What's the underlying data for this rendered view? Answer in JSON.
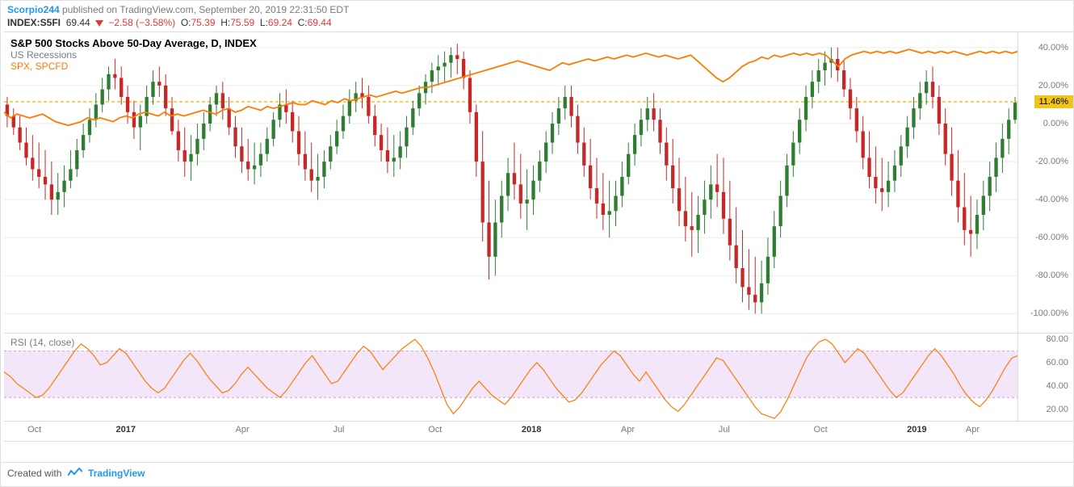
{
  "header": {
    "user": "Scorpio244",
    "pub_text_1": " published on ",
    "site": "TradingView.com",
    "pub_text_2": ", September 20, 2019 22:31:50 EDT"
  },
  "ohlc": {
    "symbol": "INDEX:S5FI",
    "last": "69.44",
    "change": "−2.58",
    "change_pct": "(−3.58%)",
    "O_lbl": "O:",
    "O": "75.39",
    "H_lbl": "H:",
    "H": "75.59",
    "L_lbl": "L:",
    "L": "69.24",
    "C_lbl": "C:",
    "C": "69.44",
    "neg_color": "#e53935"
  },
  "legend": {
    "title": "S&P 500 Stocks Above 50-Day Average, D, INDEX",
    "sub": "US Recessions",
    "spx": "SPX, SPCFD"
  },
  "main_chart": {
    "type": "candlestick+line",
    "y": {
      "min": -110,
      "max": 48,
      "ticks": [
        40,
        20,
        0,
        -20,
        -40,
        -60,
        -80,
        -100
      ]
    },
    "hline": {
      "value": 11.46,
      "label": "11.46%",
      "color": "#f0c419"
    },
    "spx_color": "#ff7a00",
    "up_color": "#2e7d32",
    "down_color": "#c62828",
    "spx": [
      6,
      3,
      5,
      4,
      3,
      4,
      5,
      3,
      1,
      0,
      -1,
      0,
      1,
      3,
      2,
      3,
      2,
      1,
      3,
      4,
      3,
      5,
      6,
      5,
      4,
      6,
      4,
      5,
      4,
      5,
      6,
      7,
      6,
      5,
      7,
      8,
      6,
      7,
      9,
      8,
      7,
      9,
      8,
      9,
      10,
      11,
      10,
      10,
      12,
      11,
      10,
      12,
      11,
      13,
      12,
      13,
      14,
      15,
      14,
      15,
      16,
      17,
      16,
      17,
      18,
      19,
      19,
      20,
      21,
      22,
      23,
      24,
      25,
      26,
      27,
      28,
      29,
      30,
      31,
      32,
      33,
      32,
      31,
      30,
      29,
      28,
      30,
      32,
      31,
      32,
      33,
      34,
      33,
      34,
      35,
      34,
      35,
      36,
      35,
      36,
      37,
      36,
      35,
      36,
      35,
      34,
      35,
      36,
      33,
      30,
      27,
      24,
      22,
      24,
      27,
      30,
      32,
      33,
      35,
      34,
      36,
      35,
      36,
      37,
      36,
      37,
      36,
      37,
      36,
      33,
      30,
      34,
      36,
      37,
      38,
      37,
      38,
      37,
      38,
      37,
      38,
      39,
      38,
      37,
      38,
      37,
      38,
      37,
      38,
      37,
      36,
      37,
      38,
      37,
      38,
      37,
      38,
      37,
      38
    ],
    "candles": [
      {
        "o": 10,
        "h": 14,
        "l": -2,
        "c": 4
      },
      {
        "o": 4,
        "h": 8,
        "l": -6,
        "c": -2
      },
      {
        "o": -2,
        "h": 4,
        "l": -14,
        "c": -10
      },
      {
        "o": -10,
        "h": -2,
        "l": -22,
        "c": -18
      },
      {
        "o": -18,
        "h": -6,
        "l": -30,
        "c": -24
      },
      {
        "o": -24,
        "h": -10,
        "l": -34,
        "c": -28
      },
      {
        "o": -28,
        "h": -14,
        "l": -40,
        "c": -32
      },
      {
        "o": -32,
        "h": -20,
        "l": -48,
        "c": -40
      },
      {
        "o": -40,
        "h": -26,
        "l": -48,
        "c": -36
      },
      {
        "o": -36,
        "h": -22,
        "l": -44,
        "c": -30
      },
      {
        "o": -30,
        "h": -14,
        "l": -34,
        "c": -24
      },
      {
        "o": -24,
        "h": -8,
        "l": -28,
        "c": -14
      },
      {
        "o": -14,
        "h": 0,
        "l": -18,
        "c": -6
      },
      {
        "o": -6,
        "h": 8,
        "l": -10,
        "c": 2
      },
      {
        "o": 2,
        "h": 16,
        "l": -2,
        "c": 10
      },
      {
        "o": 10,
        "h": 24,
        "l": 6,
        "c": 18
      },
      {
        "o": 18,
        "h": 30,
        "l": 12,
        "c": 26
      },
      {
        "o": 26,
        "h": 34,
        "l": 18,
        "c": 24
      },
      {
        "o": 24,
        "h": 30,
        "l": 10,
        "c": 14
      },
      {
        "o": 14,
        "h": 20,
        "l": 0,
        "c": 6
      },
      {
        "o": 6,
        "h": 12,
        "l": -8,
        "c": -2
      },
      {
        "o": -2,
        "h": 10,
        "l": -14,
        "c": 4
      },
      {
        "o": 4,
        "h": 20,
        "l": 0,
        "c": 14
      },
      {
        "o": 14,
        "h": 28,
        "l": 10,
        "c": 22
      },
      {
        "o": 22,
        "h": 30,
        "l": 14,
        "c": 20
      },
      {
        "o": 20,
        "h": 26,
        "l": 4,
        "c": 8
      },
      {
        "o": 8,
        "h": 14,
        "l": -6,
        "c": -4
      },
      {
        "o": -4,
        "h": 2,
        "l": -20,
        "c": -14
      },
      {
        "o": -14,
        "h": -2,
        "l": -28,
        "c": -20
      },
      {
        "o": -20,
        "h": -6,
        "l": -30,
        "c": -16
      },
      {
        "o": -16,
        "h": 0,
        "l": -22,
        "c": -8
      },
      {
        "o": -8,
        "h": 6,
        "l": -14,
        "c": 0
      },
      {
        "o": 0,
        "h": 14,
        "l": -4,
        "c": 10
      },
      {
        "o": 10,
        "h": 20,
        "l": 4,
        "c": 16
      },
      {
        "o": 16,
        "h": 22,
        "l": 2,
        "c": 8
      },
      {
        "o": 8,
        "h": 14,
        "l": -6,
        "c": -2
      },
      {
        "o": -2,
        "h": 4,
        "l": -18,
        "c": -12
      },
      {
        "o": -12,
        "h": -2,
        "l": -26,
        "c": -20
      },
      {
        "o": -20,
        "h": -8,
        "l": -30,
        "c": -24
      },
      {
        "o": -24,
        "h": -10,
        "l": -32,
        "c": -22
      },
      {
        "o": -22,
        "h": -10,
        "l": -28,
        "c": -16
      },
      {
        "o": -16,
        "h": -2,
        "l": -20,
        "c": -8
      },
      {
        "o": -8,
        "h": 6,
        "l": -12,
        "c": 2
      },
      {
        "o": 2,
        "h": 16,
        "l": -2,
        "c": 10
      },
      {
        "o": 10,
        "h": 18,
        "l": 0,
        "c": 6
      },
      {
        "o": 6,
        "h": 12,
        "l": -10,
        "c": -4
      },
      {
        "o": -4,
        "h": 4,
        "l": -22,
        "c": -16
      },
      {
        "o": -16,
        "h": -4,
        "l": -30,
        "c": -24
      },
      {
        "o": -24,
        "h": -10,
        "l": -36,
        "c": -30
      },
      {
        "o": -30,
        "h": -16,
        "l": -40,
        "c": -28
      },
      {
        "o": -28,
        "h": -14,
        "l": -34,
        "c": -20
      },
      {
        "o": -20,
        "h": -6,
        "l": -24,
        "c": -12
      },
      {
        "o": -12,
        "h": 2,
        "l": -16,
        "c": -4
      },
      {
        "o": -4,
        "h": 10,
        "l": -8,
        "c": 4
      },
      {
        "o": 4,
        "h": 18,
        "l": 0,
        "c": 12
      },
      {
        "o": 12,
        "h": 22,
        "l": 6,
        "c": 16
      },
      {
        "o": 16,
        "h": 24,
        "l": 8,
        "c": 14
      },
      {
        "o": 14,
        "h": 20,
        "l": 0,
        "c": 4
      },
      {
        "o": 4,
        "h": 10,
        "l": -12,
        "c": -6
      },
      {
        "o": -6,
        "h": 0,
        "l": -20,
        "c": -14
      },
      {
        "o": -14,
        "h": -2,
        "l": -26,
        "c": -20
      },
      {
        "o": -20,
        "h": -6,
        "l": -28,
        "c": -18
      },
      {
        "o": -18,
        "h": -4,
        "l": -24,
        "c": -12
      },
      {
        "o": -12,
        "h": 4,
        "l": -18,
        "c": -2
      },
      {
        "o": -2,
        "h": 12,
        "l": -6,
        "c": 8
      },
      {
        "o": 8,
        "h": 20,
        "l": 4,
        "c": 16
      },
      {
        "o": 16,
        "h": 26,
        "l": 10,
        "c": 22
      },
      {
        "o": 22,
        "h": 32,
        "l": 16,
        "c": 28
      },
      {
        "o": 28,
        "h": 36,
        "l": 20,
        "c": 30
      },
      {
        "o": 30,
        "h": 38,
        "l": 22,
        "c": 32
      },
      {
        "o": 32,
        "h": 40,
        "l": 24,
        "c": 36
      },
      {
        "o": 36,
        "h": 42,
        "l": 26,
        "c": 34
      },
      {
        "o": 34,
        "h": 38,
        "l": 18,
        "c": 24
      },
      {
        "o": 24,
        "h": 28,
        "l": 0,
        "c": 6
      },
      {
        "o": 6,
        "h": 10,
        "l": -28,
        "c": -20
      },
      {
        "o": -20,
        "h": -4,
        "l": -62,
        "c": -52
      },
      {
        "o": -52,
        "h": -30,
        "l": -82,
        "c": -70
      },
      {
        "o": -70,
        "h": -40,
        "l": -80,
        "c": -52
      },
      {
        "o": -52,
        "h": -30,
        "l": -60,
        "c": -38
      },
      {
        "o": -38,
        "h": -18,
        "l": -46,
        "c": -26
      },
      {
        "o": -26,
        "h": -10,
        "l": -40,
        "c": -32
      },
      {
        "o": -32,
        "h": -16,
        "l": -50,
        "c": -42
      },
      {
        "o": -42,
        "h": -24,
        "l": -56,
        "c": -40
      },
      {
        "o": -40,
        "h": -22,
        "l": -48,
        "c": -30
      },
      {
        "o": -30,
        "h": -14,
        "l": -36,
        "c": -20
      },
      {
        "o": -20,
        "h": -4,
        "l": -26,
        "c": -10
      },
      {
        "o": -10,
        "h": 6,
        "l": -16,
        "c": 0
      },
      {
        "o": 0,
        "h": 14,
        "l": -6,
        "c": 8
      },
      {
        "o": 8,
        "h": 20,
        "l": 2,
        "c": 14
      },
      {
        "o": 14,
        "h": 20,
        "l": -2,
        "c": 4
      },
      {
        "o": 4,
        "h": 10,
        "l": -16,
        "c": -10
      },
      {
        "o": -10,
        "h": -2,
        "l": -28,
        "c": -22
      },
      {
        "o": -22,
        "h": -8,
        "l": -40,
        "c": -34
      },
      {
        "o": -34,
        "h": -18,
        "l": -50,
        "c": -42
      },
      {
        "o": -42,
        "h": -26,
        "l": -56,
        "c": -48
      },
      {
        "o": -48,
        "h": -30,
        "l": -60,
        "c": -46
      },
      {
        "o": -46,
        "h": -30,
        "l": -54,
        "c": -38
      },
      {
        "o": -38,
        "h": -20,
        "l": -44,
        "c": -28
      },
      {
        "o": -28,
        "h": -10,
        "l": -32,
        "c": -16
      },
      {
        "o": -16,
        "h": 0,
        "l": -22,
        "c": -6
      },
      {
        "o": -6,
        "h": 8,
        "l": -12,
        "c": 2
      },
      {
        "o": 2,
        "h": 14,
        "l": -4,
        "c": 8
      },
      {
        "o": 8,
        "h": 16,
        "l": -4,
        "c": 2
      },
      {
        "o": 2,
        "h": 8,
        "l": -16,
        "c": -10
      },
      {
        "o": -10,
        "h": -2,
        "l": -30,
        "c": -22
      },
      {
        "o": -22,
        "h": -8,
        "l": -42,
        "c": -34
      },
      {
        "o": -34,
        "h": -18,
        "l": -54,
        "c": -46
      },
      {
        "o": -46,
        "h": -28,
        "l": -62,
        "c": -54
      },
      {
        "o": -54,
        "h": -36,
        "l": -70,
        "c": -56
      },
      {
        "o": -56,
        "h": -38,
        "l": -68,
        "c": -48
      },
      {
        "o": -48,
        "h": -30,
        "l": -58,
        "c": -40
      },
      {
        "o": -40,
        "h": -22,
        "l": -50,
        "c": -32
      },
      {
        "o": -32,
        "h": -16,
        "l": -44,
        "c": -36
      },
      {
        "o": -36,
        "h": -18,
        "l": -58,
        "c": -50
      },
      {
        "o": -50,
        "h": -30,
        "l": -72,
        "c": -64
      },
      {
        "o": -64,
        "h": -44,
        "l": -84,
        "c": -76
      },
      {
        "o": -76,
        "h": -56,
        "l": -94,
        "c": -86
      },
      {
        "o": -86,
        "h": -66,
        "l": -98,
        "c": -90
      },
      {
        "o": -90,
        "h": -70,
        "l": -100,
        "c": -94
      },
      {
        "o": -94,
        "h": -72,
        "l": -100,
        "c": -84
      },
      {
        "o": -84,
        "h": -60,
        "l": -90,
        "c": -70
      },
      {
        "o": -70,
        "h": -46,
        "l": -76,
        "c": -54
      },
      {
        "o": -54,
        "h": -30,
        "l": -60,
        "c": -38
      },
      {
        "o": -38,
        "h": -16,
        "l": -44,
        "c": -22
      },
      {
        "o": -22,
        "h": -4,
        "l": -28,
        "c": -10
      },
      {
        "o": -10,
        "h": 8,
        "l": -16,
        "c": 2
      },
      {
        "o": 2,
        "h": 20,
        "l": -4,
        "c": 14
      },
      {
        "o": 14,
        "h": 28,
        "l": 8,
        "c": 22
      },
      {
        "o": 22,
        "h": 34,
        "l": 16,
        "c": 28
      },
      {
        "o": 28,
        "h": 38,
        "l": 20,
        "c": 32
      },
      {
        "o": 32,
        "h": 40,
        "l": 24,
        "c": 34
      },
      {
        "o": 34,
        "h": 40,
        "l": 22,
        "c": 28
      },
      {
        "o": 28,
        "h": 34,
        "l": 14,
        "c": 18
      },
      {
        "o": 18,
        "h": 24,
        "l": 2,
        "c": 8
      },
      {
        "o": 8,
        "h": 14,
        "l": -10,
        "c": -4
      },
      {
        "o": -4,
        "h": 4,
        "l": -24,
        "c": -18
      },
      {
        "o": -18,
        "h": -4,
        "l": -34,
        "c": -28
      },
      {
        "o": -28,
        "h": -12,
        "l": -42,
        "c": -34
      },
      {
        "o": -34,
        "h": -18,
        "l": -46,
        "c": -36
      },
      {
        "o": -36,
        "h": -20,
        "l": -44,
        "c": -30
      },
      {
        "o": -30,
        "h": -14,
        "l": -36,
        "c": -22
      },
      {
        "o": -22,
        "h": -6,
        "l": -28,
        "c": -12
      },
      {
        "o": -12,
        "h": 4,
        "l": -18,
        "c": -2
      },
      {
        "o": -2,
        "h": 14,
        "l": -8,
        "c": 8
      },
      {
        "o": 8,
        "h": 22,
        "l": 2,
        "c": 16
      },
      {
        "o": 16,
        "h": 28,
        "l": 10,
        "c": 22
      },
      {
        "o": 22,
        "h": 30,
        "l": 8,
        "c": 14
      },
      {
        "o": 14,
        "h": 20,
        "l": -6,
        "c": 0
      },
      {
        "o": 0,
        "h": 8,
        "l": -22,
        "c": -16
      },
      {
        "o": -16,
        "h": -2,
        "l": -38,
        "c": -30
      },
      {
        "o": -30,
        "h": -14,
        "l": -52,
        "c": -44
      },
      {
        "o": -44,
        "h": -26,
        "l": -64,
        "c": -56
      },
      {
        "o": -56,
        "h": -38,
        "l": -70,
        "c": -58
      },
      {
        "o": -58,
        "h": -40,
        "l": -66,
        "c": -48
      },
      {
        "o": -48,
        "h": -30,
        "l": -56,
        "c": -38
      },
      {
        "o": -38,
        "h": -20,
        "l": -46,
        "c": -28
      },
      {
        "o": -28,
        "h": -10,
        "l": -36,
        "c": -18
      },
      {
        "o": -18,
        "h": 0,
        "l": -26,
        "c": -8
      },
      {
        "o": -8,
        "h": 8,
        "l": -16,
        "c": 2
      },
      {
        "o": 2,
        "h": 14,
        "l": 0,
        "c": 11
      }
    ]
  },
  "rsi": {
    "label": "RSI (14, close)",
    "color": "#ff7a00",
    "band_fill": "#f4e6f9",
    "band_low": 30,
    "band_high": 70,
    "y": {
      "min": 10,
      "max": 85,
      "ticks": [
        80,
        60,
        40,
        20
      ]
    },
    "series": [
      52,
      48,
      42,
      38,
      34,
      30,
      32,
      38,
      46,
      54,
      62,
      70,
      76,
      72,
      66,
      58,
      60,
      66,
      72,
      68,
      60,
      52,
      44,
      38,
      34,
      38,
      46,
      54,
      62,
      68,
      62,
      54,
      46,
      40,
      34,
      36,
      42,
      50,
      56,
      50,
      44,
      38,
      34,
      30,
      36,
      44,
      52,
      60,
      66,
      58,
      50,
      42,
      44,
      52,
      60,
      68,
      74,
      70,
      62,
      54,
      60,
      66,
      72,
      76,
      80,
      74,
      64,
      52,
      38,
      24,
      16,
      22,
      30,
      38,
      44,
      38,
      32,
      28,
      24,
      30,
      38,
      46,
      54,
      60,
      54,
      46,
      38,
      32,
      26,
      28,
      34,
      42,
      50,
      58,
      64,
      70,
      66,
      58,
      50,
      44,
      52,
      44,
      36,
      28,
      22,
      18,
      24,
      32,
      40,
      48,
      56,
      64,
      62,
      54,
      46,
      38,
      30,
      22,
      16,
      14,
      12,
      18,
      28,
      40,
      52,
      64,
      72,
      78,
      80,
      76,
      68,
      60,
      66,
      72,
      68,
      60,
      52,
      44,
      36,
      30,
      34,
      42,
      50,
      58,
      66,
      72,
      66,
      58,
      50,
      40,
      32,
      26,
      22,
      28,
      36,
      46,
      56,
      64,
      66
    ]
  },
  "xaxis": {
    "labels": [
      {
        "t": "Oct",
        "pos": 0.03,
        "bold": false
      },
      {
        "t": "2017",
        "pos": 0.12,
        "bold": true
      },
      {
        "t": "Apr",
        "pos": 0.235,
        "bold": false
      },
      {
        "t": "Jul",
        "pos": 0.33,
        "bold": false
      },
      {
        "t": "Oct",
        "pos": 0.425,
        "bold": false
      },
      {
        "t": "2018",
        "pos": 0.52,
        "bold": true
      },
      {
        "t": "Apr",
        "pos": 0.615,
        "bold": false
      },
      {
        "t": "Jul",
        "pos": 0.71,
        "bold": false
      },
      {
        "t": "Oct",
        "pos": 0.805,
        "bold": false
      },
      {
        "t": "2019",
        "pos": 0.9,
        "bold": true
      },
      {
        "t": "Apr",
        "pos": 0.955,
        "bold": false
      }
    ]
  },
  "footer": {
    "text": "Created with ",
    "brand": "TradingView"
  }
}
